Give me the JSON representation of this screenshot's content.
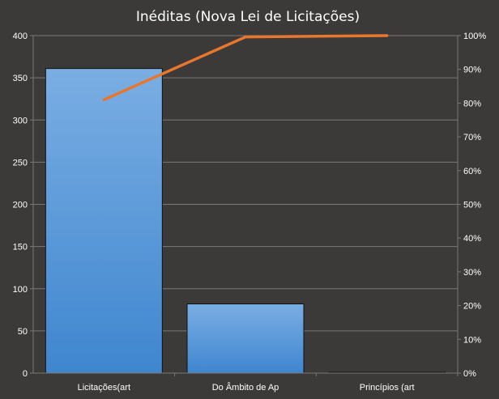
{
  "chart_data": {
    "type": "bar",
    "title": "Inéditas (Nova Lei de Licitações)",
    "categories": [
      "Licitações(art",
      "Do Âmbito de Ap",
      "Princípios (art"
    ],
    "series": [
      {
        "values": [
          361,
          82,
          1
        ]
      },
      {
        "type": "line",
        "axis": "secondary",
        "values": [
          0.81,
          0.996,
          1.0
        ]
      }
    ],
    "ylim": [
      0,
      400
    ],
    "y_ticks": [
      "0",
      "50",
      "100",
      "150",
      "200",
      "250",
      "300",
      "350",
      "400"
    ],
    "y2lim": [
      0,
      1
    ],
    "y2_ticks": [
      "0%",
      "10%",
      "20%",
      "30%",
      "40%",
      "50%",
      "60%",
      "70%",
      "80%",
      "90%",
      "100%"
    ],
    "grid": true,
    "legend": "none",
    "colors": {
      "background": "#3b3a38",
      "bar_top": "#7aaee3",
      "bar_bottom": "#3f86cf",
      "line": "#e8762d",
      "grid": "#7a7875",
      "text": "#ffffff"
    }
  }
}
